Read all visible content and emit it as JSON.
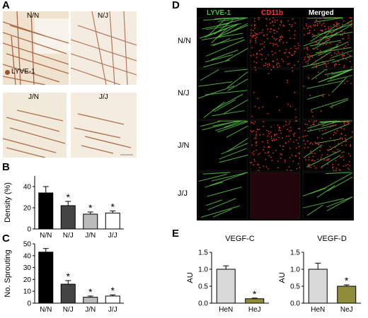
{
  "panels": {
    "a": {
      "letter": "A",
      "tiles": [
        {
          "label": "N/N"
        },
        {
          "label": "N/J"
        },
        {
          "label": "J/N"
        },
        {
          "label": "J/J"
        }
      ],
      "legend": "LYVE-1",
      "colors": {
        "stain": "#a0522d",
        "bg": "#f3ecdf"
      }
    },
    "b": {
      "letter": "B"
    },
    "c": {
      "letter": "C"
    },
    "d": {
      "letter": "D",
      "headers": [
        "LYVE-1",
        "CD11b",
        "Merged"
      ],
      "header_colors": [
        "#33cc33",
        "#ff3333",
        "#ffffff"
      ],
      "rows": [
        "N/N",
        "N/J",
        "J/N",
        "J/J"
      ]
    },
    "e": {
      "letter": "E"
    }
  },
  "chart_data": [
    {
      "id": "b",
      "type": "bar",
      "categories": [
        "N/N",
        "N/J",
        "J/N",
        "J/J"
      ],
      "values": [
        34,
        22,
        14,
        15
      ],
      "errors": [
        6,
        4,
        2,
        2
      ],
      "significance": [
        "",
        "*",
        "*",
        "*"
      ],
      "fills": [
        "#000000",
        "#444444",
        "#bbbbbb",
        "#ffffff"
      ],
      "ylabel": "Density (%)",
      "ylim": [
        0,
        50
      ],
      "yticks": [
        0,
        20,
        40
      ]
    },
    {
      "id": "c",
      "type": "bar",
      "categories": [
        "N/N",
        "N/J",
        "J/N",
        "J/J"
      ],
      "values": [
        43,
        16,
        5,
        6
      ],
      "errors": [
        3,
        3,
        1,
        1
      ],
      "significance": [
        "",
        "*",
        "*",
        "*"
      ],
      "fills": [
        "#000000",
        "#444444",
        "#bbbbbb",
        "#ffffff"
      ],
      "ylabel": "No. Sprouting",
      "ylim": [
        0,
        50
      ],
      "yticks": [
        0,
        10,
        20,
        30,
        40,
        50
      ]
    },
    {
      "id": "e1",
      "type": "bar",
      "title": "VEGF-C",
      "categories": [
        "HeN",
        "HeJ"
      ],
      "values": [
        1.0,
        0.13
      ],
      "errors": [
        0.1,
        0.02
      ],
      "significance": [
        "",
        "*"
      ],
      "fills": [
        "#d9d9d9",
        "#8e8d3a"
      ],
      "ylabel": "AU",
      "ylim": [
        0,
        1.5
      ],
      "yticks": [
        "0.0",
        "0.5",
        "1.0",
        "1.5"
      ]
    },
    {
      "id": "e2",
      "type": "bar",
      "title": "VEGF-D",
      "categories": [
        "HeN",
        "NeJ"
      ],
      "values": [
        1.0,
        0.5
      ],
      "errors": [
        0.18,
        0.04
      ],
      "significance": [
        "",
        "*"
      ],
      "fills": [
        "#d9d9d9",
        "#8e8d3a"
      ],
      "ylabel": "AU",
      "ylim": [
        0,
        1.5
      ],
      "yticks": [
        "0.0",
        "0.5",
        "1.0",
        "1.5"
      ]
    }
  ]
}
